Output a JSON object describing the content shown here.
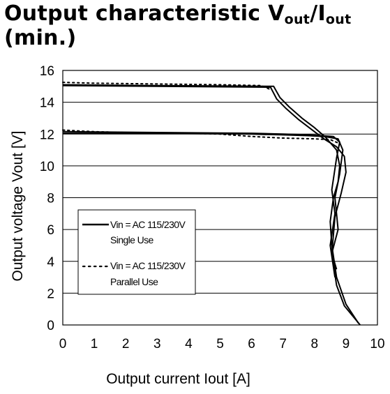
{
  "title": {
    "main": "Output characteristic V",
    "sub1": "out",
    "sep": "/I",
    "sub2": "out",
    "suffix": "(min.)"
  },
  "chart_data": {
    "type": "line",
    "title": "Output characteristic Vout/Iout (min.)",
    "xlabel": "Output current Iout [A]",
    "ylabel": "Output voltage Vout [V]",
    "xlim": [
      0,
      10
    ],
    "ylim": [
      0,
      16
    ],
    "xticks": [
      0,
      1,
      2,
      3,
      4,
      5,
      6,
      7,
      8,
      9,
      10
    ],
    "yticks": [
      0,
      2,
      4,
      6,
      8,
      10,
      12,
      14,
      16
    ],
    "grid": "horizontal",
    "legend_position": "left-center",
    "legend": [
      {
        "line1": "Vin = AC 115/230V",
        "line2": "Single Use",
        "style": "solid"
      },
      {
        "line1": "Vin = AC 115/230V",
        "line2": "Parallel Use",
        "style": "dotted"
      }
    ],
    "series": [
      {
        "style": "solid",
        "x": [
          0,
          3,
          6.7,
          6.9,
          7.2,
          7.6,
          8.0,
          8.35,
          8.7,
          8.8,
          8.75,
          8.6,
          8.5,
          8.55,
          8.7,
          9.0,
          9.4
        ],
        "y": [
          15.1,
          15.05,
          15.0,
          14.3,
          13.7,
          13.0,
          12.4,
          11.8,
          11.0,
          10.0,
          9.0,
          8.0,
          6.5,
          5.0,
          3.0,
          1.3,
          0.1
        ]
      },
      {
        "style": "solid",
        "x": [
          0,
          3,
          6.6,
          6.8,
          7.1,
          7.5,
          7.9,
          8.3,
          8.7,
          8.95,
          9.0,
          8.85,
          8.65,
          8.55,
          8.7,
          8.95,
          9.45
        ],
        "y": [
          15.05,
          15.0,
          14.95,
          14.2,
          13.6,
          12.9,
          12.3,
          11.7,
          11.2,
          10.6,
          9.6,
          8.3,
          6.8,
          4.5,
          2.5,
          1.2,
          0.0
        ]
      },
      {
        "style": "solid",
        "x": [
          0,
          3,
          6,
          7,
          7.8,
          8.2,
          8.6,
          8.8,
          8.7,
          8.55,
          8.65,
          8.5,
          8.65
        ],
        "y": [
          12.15,
          12.1,
          12.05,
          12.0,
          11.95,
          11.9,
          11.85,
          11.5,
          10.5,
          8.5,
          7.0,
          5.0,
          3.0
        ]
      },
      {
        "style": "solid",
        "x": [
          0,
          3,
          6,
          7,
          7.8,
          8.3,
          8.75,
          8.9,
          8.8,
          8.65,
          8.75,
          8.55,
          8.7
        ],
        "y": [
          12.05,
          12.05,
          12.0,
          11.95,
          11.9,
          11.85,
          11.7,
          11.0,
          9.5,
          8.0,
          6.0,
          4.5,
          3.5
        ]
      },
      {
        "style": "dotted",
        "x": [
          0,
          1,
          3,
          5,
          6.3,
          6.6
        ],
        "y": [
          15.25,
          15.2,
          15.15,
          15.1,
          15.05,
          14.8
        ]
      },
      {
        "style": "dotted",
        "x": [
          0,
          0.5,
          1,
          2,
          3,
          4,
          5,
          6,
          7,
          8,
          8.5,
          8.8
        ],
        "y": [
          12.25,
          12.2,
          12.15,
          12.1,
          12.05,
          12.05,
          12.0,
          11.85,
          11.75,
          11.7,
          11.65,
          11.4
        ]
      }
    ]
  }
}
